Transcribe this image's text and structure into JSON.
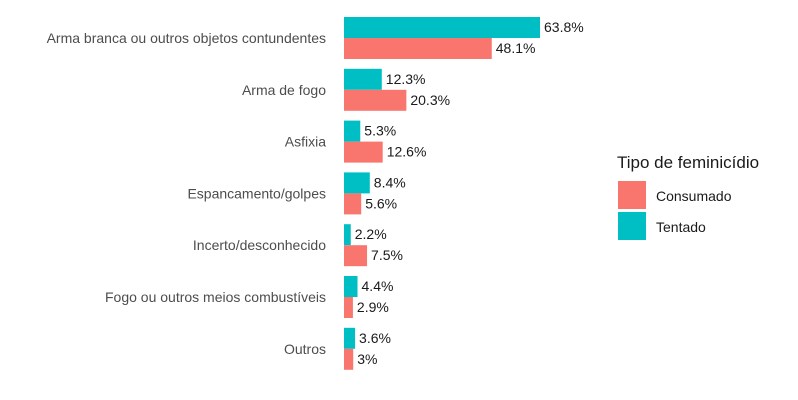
{
  "chart_data": {
    "type": "bar",
    "orientation": "horizontal",
    "categories": [
      "Arma branca ou outros objetos contundentes",
      "Arma de fogo",
      "Asfixia",
      "Espancamento/golpes",
      "Incerto/desconhecido",
      "Fogo ou outros meios combustíveis",
      "Outros"
    ],
    "series": [
      {
        "name": "Tentado",
        "color": "#00BFC4",
        "values": [
          63.8,
          12.3,
          5.3,
          8.4,
          2.2,
          4.4,
          3.6
        ],
        "labels": [
          "63.8%",
          "12.3%",
          "5.3%",
          "8.4%",
          "2.2%",
          "4.4%",
          "3.6%"
        ]
      },
      {
        "name": "Consumado",
        "color": "#F8766D",
        "values": [
          48.1,
          20.3,
          12.6,
          5.6,
          7.5,
          2.9,
          3.0
        ],
        "labels": [
          "48.1%",
          "20.3%",
          "12.6%",
          "5.6%",
          "7.5%",
          "2.9%",
          "3%"
        ]
      }
    ],
    "xlim": [
      0,
      63.8
    ],
    "grid": false,
    "legend": {
      "title": "Tipo de feminicídio",
      "placement": "right",
      "entries": [
        {
          "label": "Consumado",
          "color": "#F8766D"
        },
        {
          "label": "Tentado",
          "color": "#00BFC4"
        }
      ]
    }
  }
}
